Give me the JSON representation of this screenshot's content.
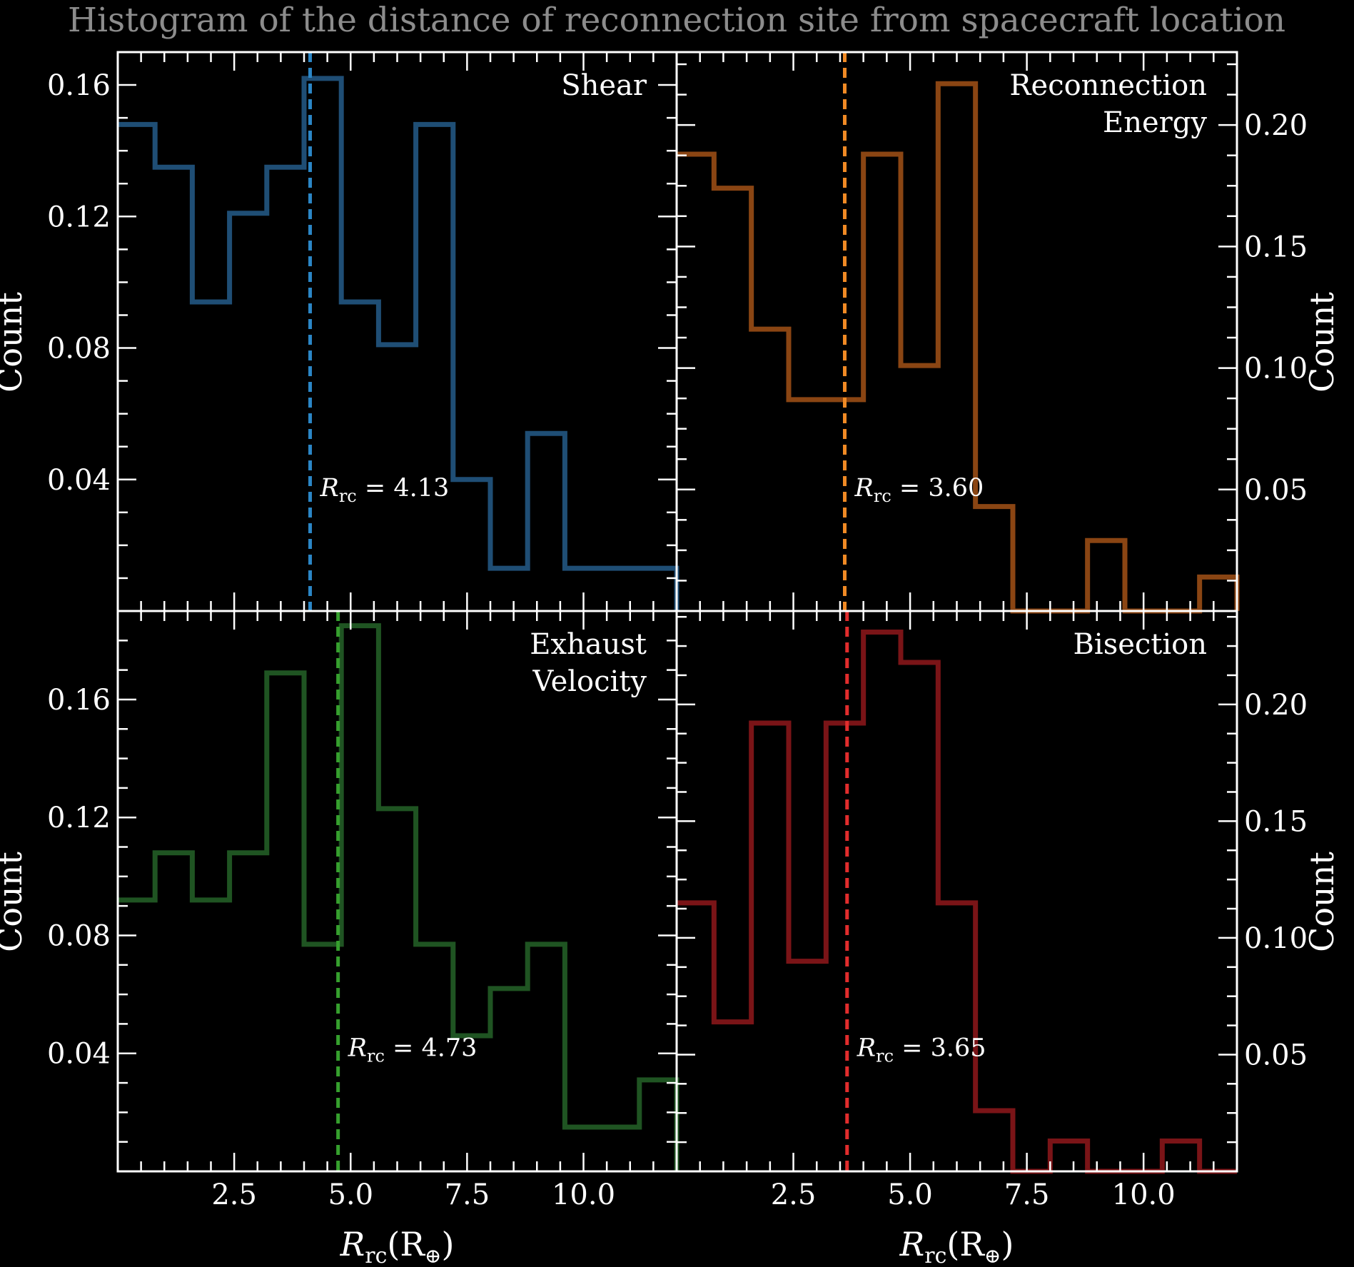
{
  "title": "Histogram of the distance of reconnection site from spacecraft location",
  "x_axis_label_main": "R",
  "x_axis_label_sub": "rc",
  "x_axis_label_unit": "(R",
  "x_axis_label_unit_sub": "⊕",
  "x_axis_label_close": ")",
  "y_axis_label": "Count",
  "annotation_prefix": "R",
  "annotation_sub": "rc",
  "chart_data": [
    {
      "type": "histogram",
      "name": "Shear",
      "label_lines": [
        "Shear"
      ],
      "color": "#1f4e75",
      "vline_color": "#2b86c6",
      "yaxis_side": "left",
      "xlim": [
        0,
        12
      ],
      "ylim": [
        0,
        0.17
      ],
      "yticks": [
        0.04,
        0.08,
        0.12,
        0.16
      ],
      "ytick_labels": [
        "0.04",
        "0.08",
        "0.12",
        "0.16"
      ],
      "xticks": [
        2.5,
        5.0,
        7.5,
        10.0
      ],
      "xtick_labels": [],
      "bin_edges": [
        0.0,
        0.8,
        1.6,
        2.4,
        3.2,
        4.0,
        4.8,
        5.6,
        6.4,
        7.2,
        8.0,
        8.8,
        9.6,
        10.4,
        11.2,
        12.0
      ],
      "counts": [
        0.148,
        0.135,
        0.094,
        0.121,
        0.135,
        0.162,
        0.094,
        0.081,
        0.148,
        0.04,
        0.013,
        0.054,
        0.013,
        0.013,
        0.013
      ],
      "median": 4.13,
      "annotation_value": "= 4.13"
    },
    {
      "type": "histogram",
      "name": "Reconnection Energy",
      "label_lines": [
        "Reconnection",
        "Energy"
      ],
      "color": "#8a4513",
      "vline_color": "#f08a24",
      "yaxis_side": "right",
      "xlim": [
        0,
        12
      ],
      "ylim": [
        0,
        0.23
      ],
      "yticks": [
        0.05,
        0.1,
        0.15,
        0.2
      ],
      "ytick_labels": [
        "0.05",
        "0.10",
        "0.15",
        "0.20"
      ],
      "xticks": [
        2.5,
        5.0,
        7.5,
        10.0
      ],
      "xtick_labels": [],
      "bin_edges": [
        0.0,
        0.8,
        1.6,
        2.4,
        3.2,
        4.0,
        4.8,
        5.6,
        6.4,
        7.2,
        8.0,
        8.8,
        9.6,
        10.4,
        11.2,
        12.0
      ],
      "counts": [
        0.188,
        0.174,
        0.116,
        0.087,
        0.087,
        0.188,
        0.101,
        0.217,
        0.043,
        0.0,
        0.0,
        0.029,
        0.0,
        0.0,
        0.014
      ],
      "median": 3.6,
      "annotation_value": "= 3.60"
    },
    {
      "type": "histogram",
      "name": "Exhaust Velocity",
      "label_lines": [
        "Exhaust",
        "Velocity"
      ],
      "color": "#1f5422",
      "vline_color": "#36a02e",
      "yaxis_side": "left",
      "xlim": [
        0,
        12
      ],
      "ylim": [
        0,
        0.19
      ],
      "yticks": [
        0.04,
        0.08,
        0.12,
        0.16
      ],
      "ytick_labels": [
        "0.04",
        "0.08",
        "0.12",
        "0.16"
      ],
      "xticks": [
        2.5,
        5.0,
        7.5,
        10.0
      ],
      "xtick_labels": [
        "2.5",
        "5.0",
        "7.5",
        "10.0"
      ],
      "bin_edges": [
        0.0,
        0.8,
        1.6,
        2.4,
        3.2,
        4.0,
        4.8,
        5.6,
        6.4,
        7.2,
        8.0,
        8.8,
        9.6,
        10.4,
        11.2,
        12.0
      ],
      "counts": [
        0.092,
        0.108,
        0.092,
        0.108,
        0.169,
        0.077,
        0.185,
        0.123,
        0.077,
        0.046,
        0.062,
        0.077,
        0.015,
        0.015,
        0.031
      ],
      "median": 4.73,
      "annotation_value": "= 4.73"
    },
    {
      "type": "histogram",
      "name": "Bisection",
      "label_lines": [
        "Bisection"
      ],
      "color": "#7a1417",
      "vline_color": "#e22d2d",
      "yaxis_side": "right",
      "xlim": [
        0,
        12
      ],
      "ylim": [
        0,
        0.24
      ],
      "yticks": [
        0.05,
        0.1,
        0.15,
        0.2
      ],
      "ytick_labels": [
        "0.05",
        "0.10",
        "0.15",
        "0.20"
      ],
      "xticks": [
        2.5,
        5.0,
        7.5,
        10.0
      ],
      "xtick_labels": [
        "2.5",
        "5.0",
        "7.5",
        "10.0"
      ],
      "bin_edges": [
        0.0,
        0.8,
        1.6,
        2.4,
        3.2,
        4.0,
        4.8,
        5.6,
        6.4,
        7.2,
        8.0,
        8.8,
        9.6,
        10.4,
        11.2,
        12.0
      ],
      "counts": [
        0.115,
        0.064,
        0.192,
        0.09,
        0.192,
        0.231,
        0.218,
        0.115,
        0.026,
        0.0,
        0.013,
        0.0,
        0.0,
        0.013,
        0.0
      ],
      "median": 3.65,
      "annotation_value": "= 3.65"
    }
  ]
}
